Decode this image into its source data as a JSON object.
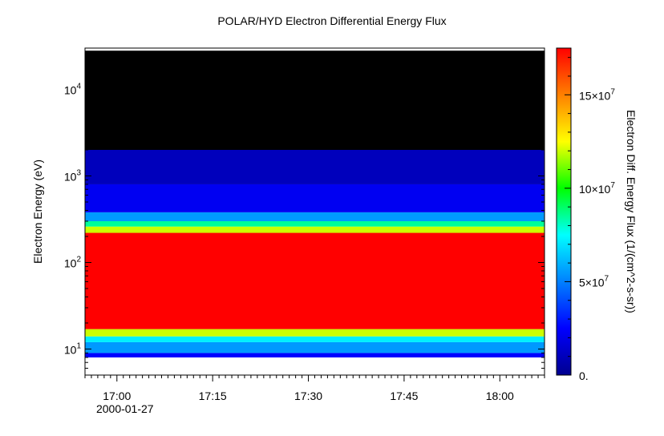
{
  "chart_data": {
    "type": "heatmap",
    "title": "POLAR/HYD  Electron Differential Energy Flux",
    "ylabel": "Electron Energy (eV)",
    "y_scale": "log",
    "ylim": [
      5,
      30000
    ],
    "y_ticks": [
      {
        "value": 10,
        "base": "10",
        "exp": "1"
      },
      {
        "value": 100,
        "base": "10",
        "exp": "2"
      },
      {
        "value": 1000,
        "base": "10",
        "exp": "3"
      },
      {
        "value": 10000,
        "base": "10",
        "exp": "4"
      }
    ],
    "xlim": [
      "16:55",
      "18:07"
    ],
    "x_ticks": [
      "17:00",
      "17:15",
      "17:30",
      "17:45",
      "18:00"
    ],
    "date_label": "2000-01-27",
    "data_energy_range_ev": [
      8,
      28000
    ],
    "colorbar": {
      "label": "Electron Diff. Energy Flux (1/(cm^2-s-sr))",
      "range": [
        0,
        175000000
      ],
      "ticks": [
        {
          "value": 0,
          "label": "0."
        },
        {
          "value": 50000000,
          "base": "5×10",
          "exp": "7"
        },
        {
          "value": 100000000,
          "base": "10×10",
          "exp": "7"
        },
        {
          "value": 150000000,
          "base": "15×10",
          "exp": "7"
        }
      ],
      "colormap": [
        "#00008f",
        "#0000ff",
        "#0080ff",
        "#00ffff",
        "#00ff00",
        "#ffff00",
        "#ff8000",
        "#ff0000"
      ]
    },
    "bands": [
      {
        "e_min": 8,
        "e_max": 9,
        "flux": 25000000
      },
      {
        "e_min": 9,
        "e_max": 12,
        "flux": 55000000
      },
      {
        "e_min": 12,
        "e_max": 14,
        "flux": 72000000
      },
      {
        "e_min": 14,
        "e_max": 17,
        "flux": 120000000
      },
      {
        "e_min": 17,
        "e_max": 220,
        "flux": 175000000
      },
      {
        "e_min": 220,
        "e_max": 260,
        "flux": 120000000
      },
      {
        "e_min": 260,
        "e_max": 300,
        "flux": 85000000
      },
      {
        "e_min": 300,
        "e_max": 380,
        "flux": 55000000
      },
      {
        "e_min": 380,
        "e_max": 800,
        "flux": 22000000
      },
      {
        "e_min": 800,
        "e_max": 2000,
        "flux": 10000000
      },
      {
        "e_min": 2000,
        "e_max": 28000,
        "flux": 0
      }
    ]
  }
}
